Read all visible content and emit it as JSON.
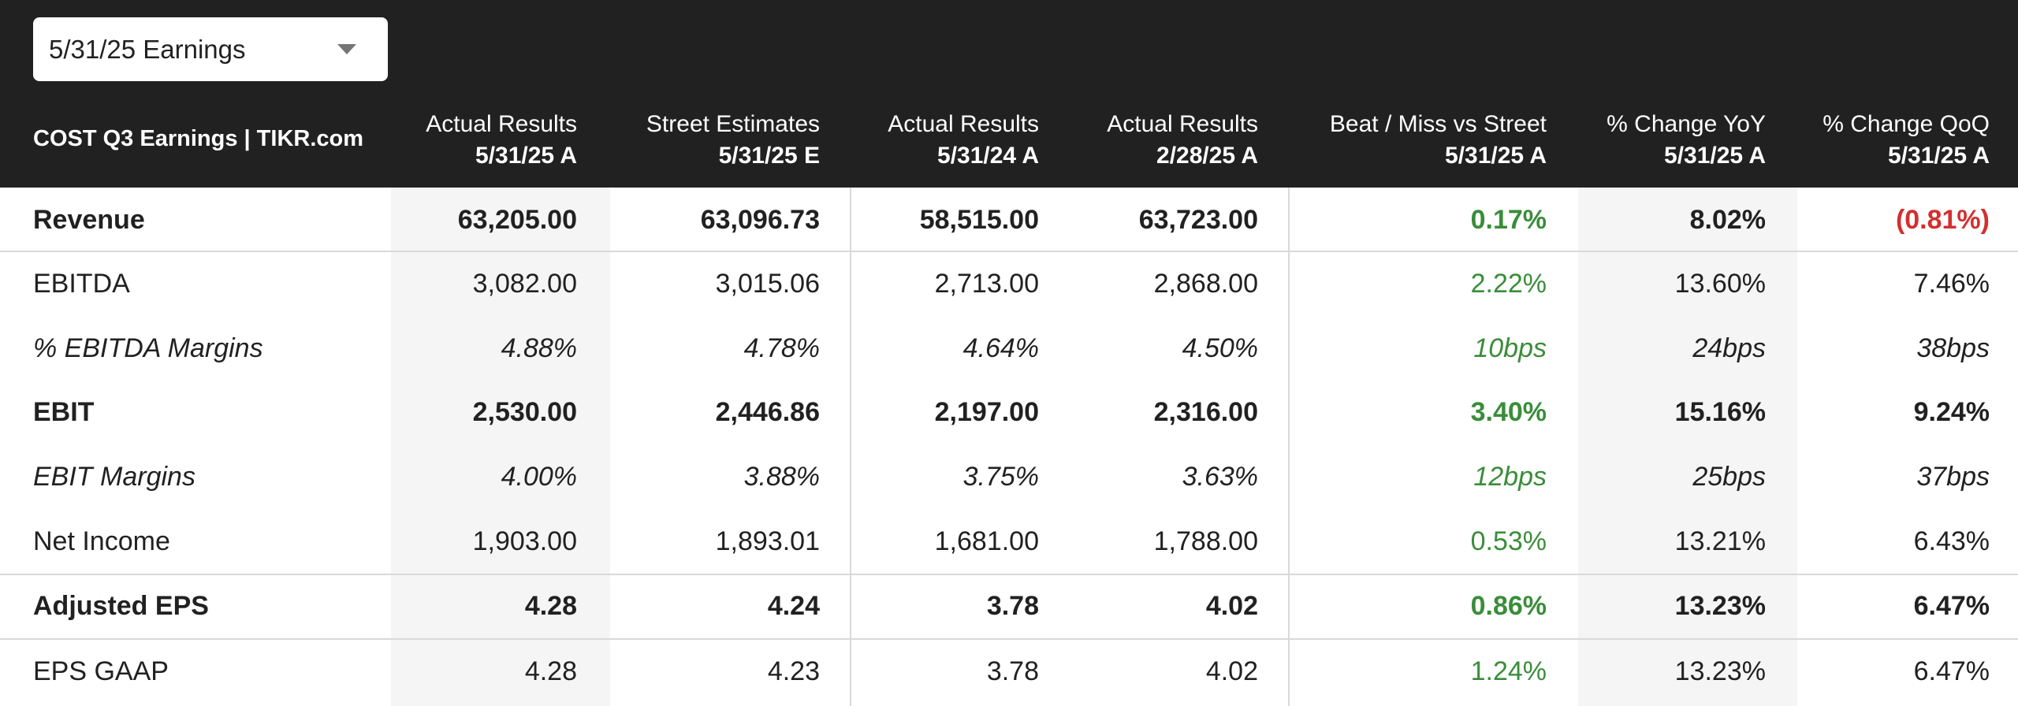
{
  "period_selector": {
    "value": "5/31/25 Earnings"
  },
  "table": {
    "title": "COST Q3 Earnings | TIKR.com",
    "columns": [
      {
        "line1": "Actual Results",
        "line2": "5/31/25 A"
      },
      {
        "line1": "Street Estimates",
        "line2": "5/31/25 E"
      },
      {
        "line1": "Actual Results",
        "line2": "5/31/24 A"
      },
      {
        "line1": "Actual Results",
        "line2": "2/28/25 A"
      },
      {
        "line1": "Beat / Miss vs Street",
        "line2": "5/31/25 A"
      },
      {
        "line1": "% Change YoY",
        "line2": "5/31/25 A"
      },
      {
        "line1": "% Change QoQ",
        "line2": "5/31/25 A"
      }
    ],
    "rows": [
      {
        "label": "Revenue",
        "values": [
          "63,205.00",
          "63,096.73",
          "58,515.00",
          "63,723.00",
          "0.17%",
          "8.02%",
          "(0.81%)"
        ]
      },
      {
        "label": "EBITDA",
        "values": [
          "3,082.00",
          "3,015.06",
          "2,713.00",
          "2,868.00",
          "2.22%",
          "13.60%",
          "7.46%"
        ]
      },
      {
        "label": "% EBITDA Margins",
        "values": [
          "4.88%",
          "4.78%",
          "4.64%",
          "4.50%",
          "10bps",
          "24bps",
          "38bps"
        ]
      },
      {
        "label": "EBIT",
        "values": [
          "2,530.00",
          "2,446.86",
          "2,197.00",
          "2,316.00",
          "3.40%",
          "15.16%",
          "9.24%"
        ]
      },
      {
        "label": "EBIT Margins",
        "values": [
          "4.00%",
          "3.88%",
          "3.75%",
          "3.63%",
          "12bps",
          "25bps",
          "37bps"
        ]
      },
      {
        "label": "Net Income",
        "values": [
          "1,903.00",
          "1,893.01",
          "1,681.00",
          "1,788.00",
          "0.53%",
          "13.21%",
          "6.43%"
        ]
      },
      {
        "label": "Adjusted EPS",
        "values": [
          "4.28",
          "4.24",
          "3.78",
          "4.02",
          "0.86%",
          "13.23%",
          "6.47%"
        ]
      },
      {
        "label": "EPS GAAP",
        "values": [
          "4.28",
          "4.23",
          "3.78",
          "4.02",
          "1.24%",
          "13.23%",
          "6.47%"
        ]
      }
    ]
  },
  "colors": {
    "header_bg": "#212121",
    "positive": "#3a8d3a",
    "negative": "#d32f2f",
    "shaded_column": "#f5f5f5"
  }
}
